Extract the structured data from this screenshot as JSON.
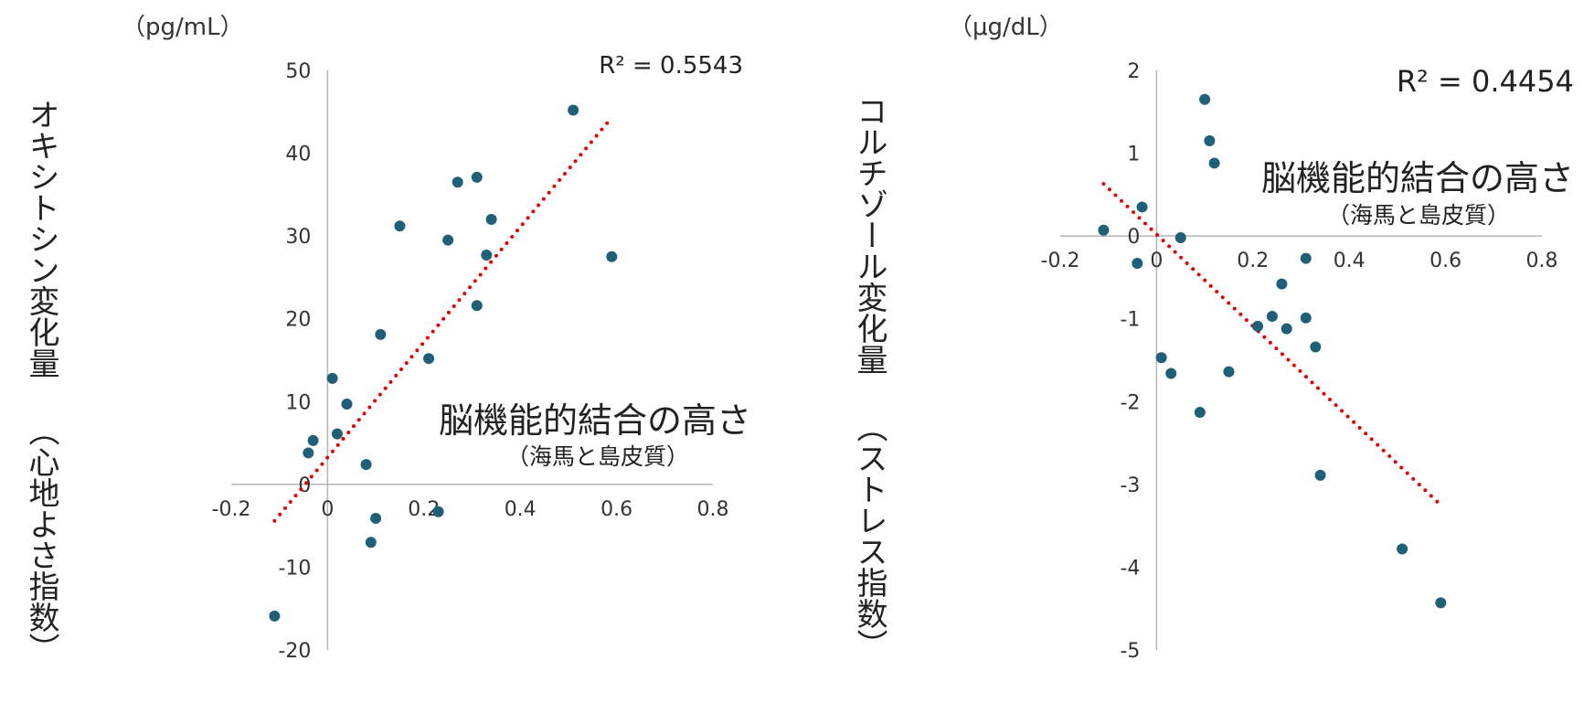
{
  "chart_data": [
    {
      "type": "scatter",
      "y_unit": "（pg/mL）",
      "ylabel": "オキシトシン変化量 （心地よさ指数）",
      "xlabel": "脳機能的結合の高さ",
      "xlabel_sub": "（海馬と島皮質）",
      "r2_label": "R² = 0.5543",
      "xlim": [
        -0.2,
        0.8
      ],
      "ylim": [
        -20,
        50
      ],
      "x_ticks": [
        "-0.2",
        "0",
        "0.2",
        "0.4",
        "0.6",
        "0.8"
      ],
      "y_ticks": [
        "50",
        "40",
        "30",
        "20",
        "10",
        "0",
        "-10",
        "-20"
      ],
      "series": [
        {
          "x": [
            -0.11,
            -0.04,
            -0.03,
            0.01,
            0.02,
            0.04,
            0.08,
            0.09,
            0.1,
            0.11,
            0.15,
            0.21,
            0.23,
            0.25,
            0.27,
            0.31,
            0.31,
            0.33,
            0.34,
            0.51,
            0.59
          ],
          "y": [
            -15.9,
            3.8,
            5.3,
            12.8,
            6.1,
            9.7,
            2.4,
            -7.0,
            -4.1,
            18.1,
            31.2,
            15.2,
            -3.3,
            29.5,
            36.5,
            21.6,
            37.1,
            27.7,
            32.0,
            45.2,
            27.5
          ]
        }
      ],
      "trendline": {
        "type": "linear",
        "x": [
          -0.11,
          0.59
        ],
        "y": [
          -4.4,
          44.3
        ],
        "style": "dotted",
        "color": "#e00000"
      },
      "marker_color": "#1f6078",
      "grid": false
    },
    {
      "type": "scatter",
      "y_unit": "（μg/dL）",
      "ylabel": "コルチゾール変化量 （ストレス指数）",
      "xlabel": "脳機能的結合の高さ",
      "xlabel_sub": "（海馬と島皮質）",
      "r2_label": "R² = 0.4454",
      "xlim": [
        -0.2,
        0.8
      ],
      "ylim": [
        -5,
        2
      ],
      "x_ticks": [
        "-0.2",
        "0",
        "0.2",
        "0.4",
        "0.6",
        "0.8"
      ],
      "y_ticks": [
        "2",
        "1",
        "0",
        "-1",
        "-2",
        "-3",
        "-4",
        "-5"
      ],
      "series": [
        {
          "x": [
            -0.11,
            -0.04,
            -0.03,
            0.01,
            0.03,
            0.05,
            0.09,
            0.1,
            0.11,
            0.12,
            0.15,
            0.21,
            0.24,
            0.26,
            0.27,
            0.31,
            0.31,
            0.33,
            0.34,
            0.51,
            0.59
          ],
          "y": [
            0.07,
            -0.33,
            0.35,
            -1.47,
            -1.66,
            -0.02,
            -2.13,
            1.65,
            1.15,
            0.88,
            -1.64,
            -1.09,
            -0.97,
            -0.58,
            -1.12,
            -0.27,
            -0.99,
            -1.34,
            -2.89,
            -3.78,
            -4.43
          ]
        }
      ],
      "trendline": {
        "type": "linear",
        "x": [
          -0.11,
          0.59
        ],
        "y": [
          0.63,
          -3.25
        ],
        "style": "dotted",
        "color": "#e00000"
      },
      "marker_color": "#1f6078",
      "grid": false
    }
  ]
}
